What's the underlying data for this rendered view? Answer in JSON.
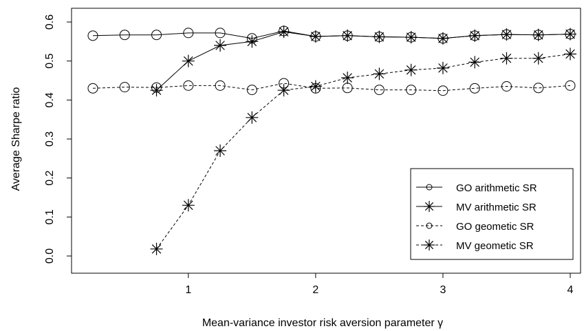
{
  "chart_data": {
    "type": "line",
    "title": "",
    "xlabel": "Mean-variance investor risk aversion parameter γ",
    "ylabel": "Average Sharpe ratio",
    "xlim": [
      0.25,
      4
    ],
    "ylim": [
      0.0,
      0.6
    ],
    "xticks": [
      1,
      2,
      3,
      4
    ],
    "xtick_labels": [
      "1",
      "2",
      "3",
      "4"
    ],
    "yticks": [
      0.0,
      0.1,
      0.2,
      0.3,
      0.4,
      0.5,
      0.6
    ],
    "ytick_labels": [
      "0.0",
      "0.1",
      "0.2",
      "0.3",
      "0.4",
      "0.5",
      "0.6"
    ],
    "grid": false,
    "legend_position": "bottom-right",
    "series": [
      {
        "name": "GO arithmetic SR",
        "marker": "circle",
        "line": "solid",
        "x": [
          0.25,
          0.5,
          0.75,
          1.0,
          1.25,
          1.5,
          1.75,
          2.0,
          2.25,
          2.5,
          2.75,
          3.0,
          3.25,
          3.5,
          3.75,
          4.0
        ],
        "values": [
          0.565,
          0.567,
          0.567,
          0.572,
          0.572,
          0.558,
          0.577,
          0.563,
          0.565,
          0.562,
          0.561,
          0.558,
          0.565,
          0.568,
          0.567,
          0.569
        ]
      },
      {
        "name": "MV arithmetic SR",
        "marker": "star",
        "line": "solid",
        "x": [
          0.75,
          1.0,
          1.25,
          1.5,
          1.75,
          2.0,
          2.25,
          2.5,
          2.75,
          3.0,
          3.25,
          3.5,
          3.75,
          4.0
        ],
        "values": [
          0.425,
          0.5,
          0.54,
          0.55,
          0.575,
          0.563,
          0.565,
          0.562,
          0.561,
          0.558,
          0.565,
          0.568,
          0.567,
          0.569
        ]
      },
      {
        "name": "GO geometic SR",
        "marker": "circle",
        "line": "dashed",
        "x": [
          0.25,
          0.5,
          0.75,
          1.0,
          1.25,
          1.5,
          1.75,
          2.0,
          2.25,
          2.5,
          2.75,
          3.0,
          3.25,
          3.5,
          3.75,
          4.0
        ],
        "values": [
          0.43,
          0.433,
          0.432,
          0.437,
          0.437,
          0.426,
          0.443,
          0.43,
          0.431,
          0.426,
          0.426,
          0.424,
          0.43,
          0.435,
          0.431,
          0.437
        ]
      },
      {
        "name": "MV geometic SR",
        "marker": "star",
        "line": "dashed",
        "x": [
          0.75,
          1.0,
          1.25,
          1.5,
          1.75,
          2.0,
          2.25,
          2.5,
          2.75,
          3.0,
          3.25,
          3.5,
          3.75,
          4.0
        ],
        "values": [
          0.018,
          0.13,
          0.27,
          0.355,
          0.425,
          0.435,
          0.457,
          0.467,
          0.477,
          0.482,
          0.497,
          0.507,
          0.507,
          0.518
        ]
      }
    ]
  }
}
